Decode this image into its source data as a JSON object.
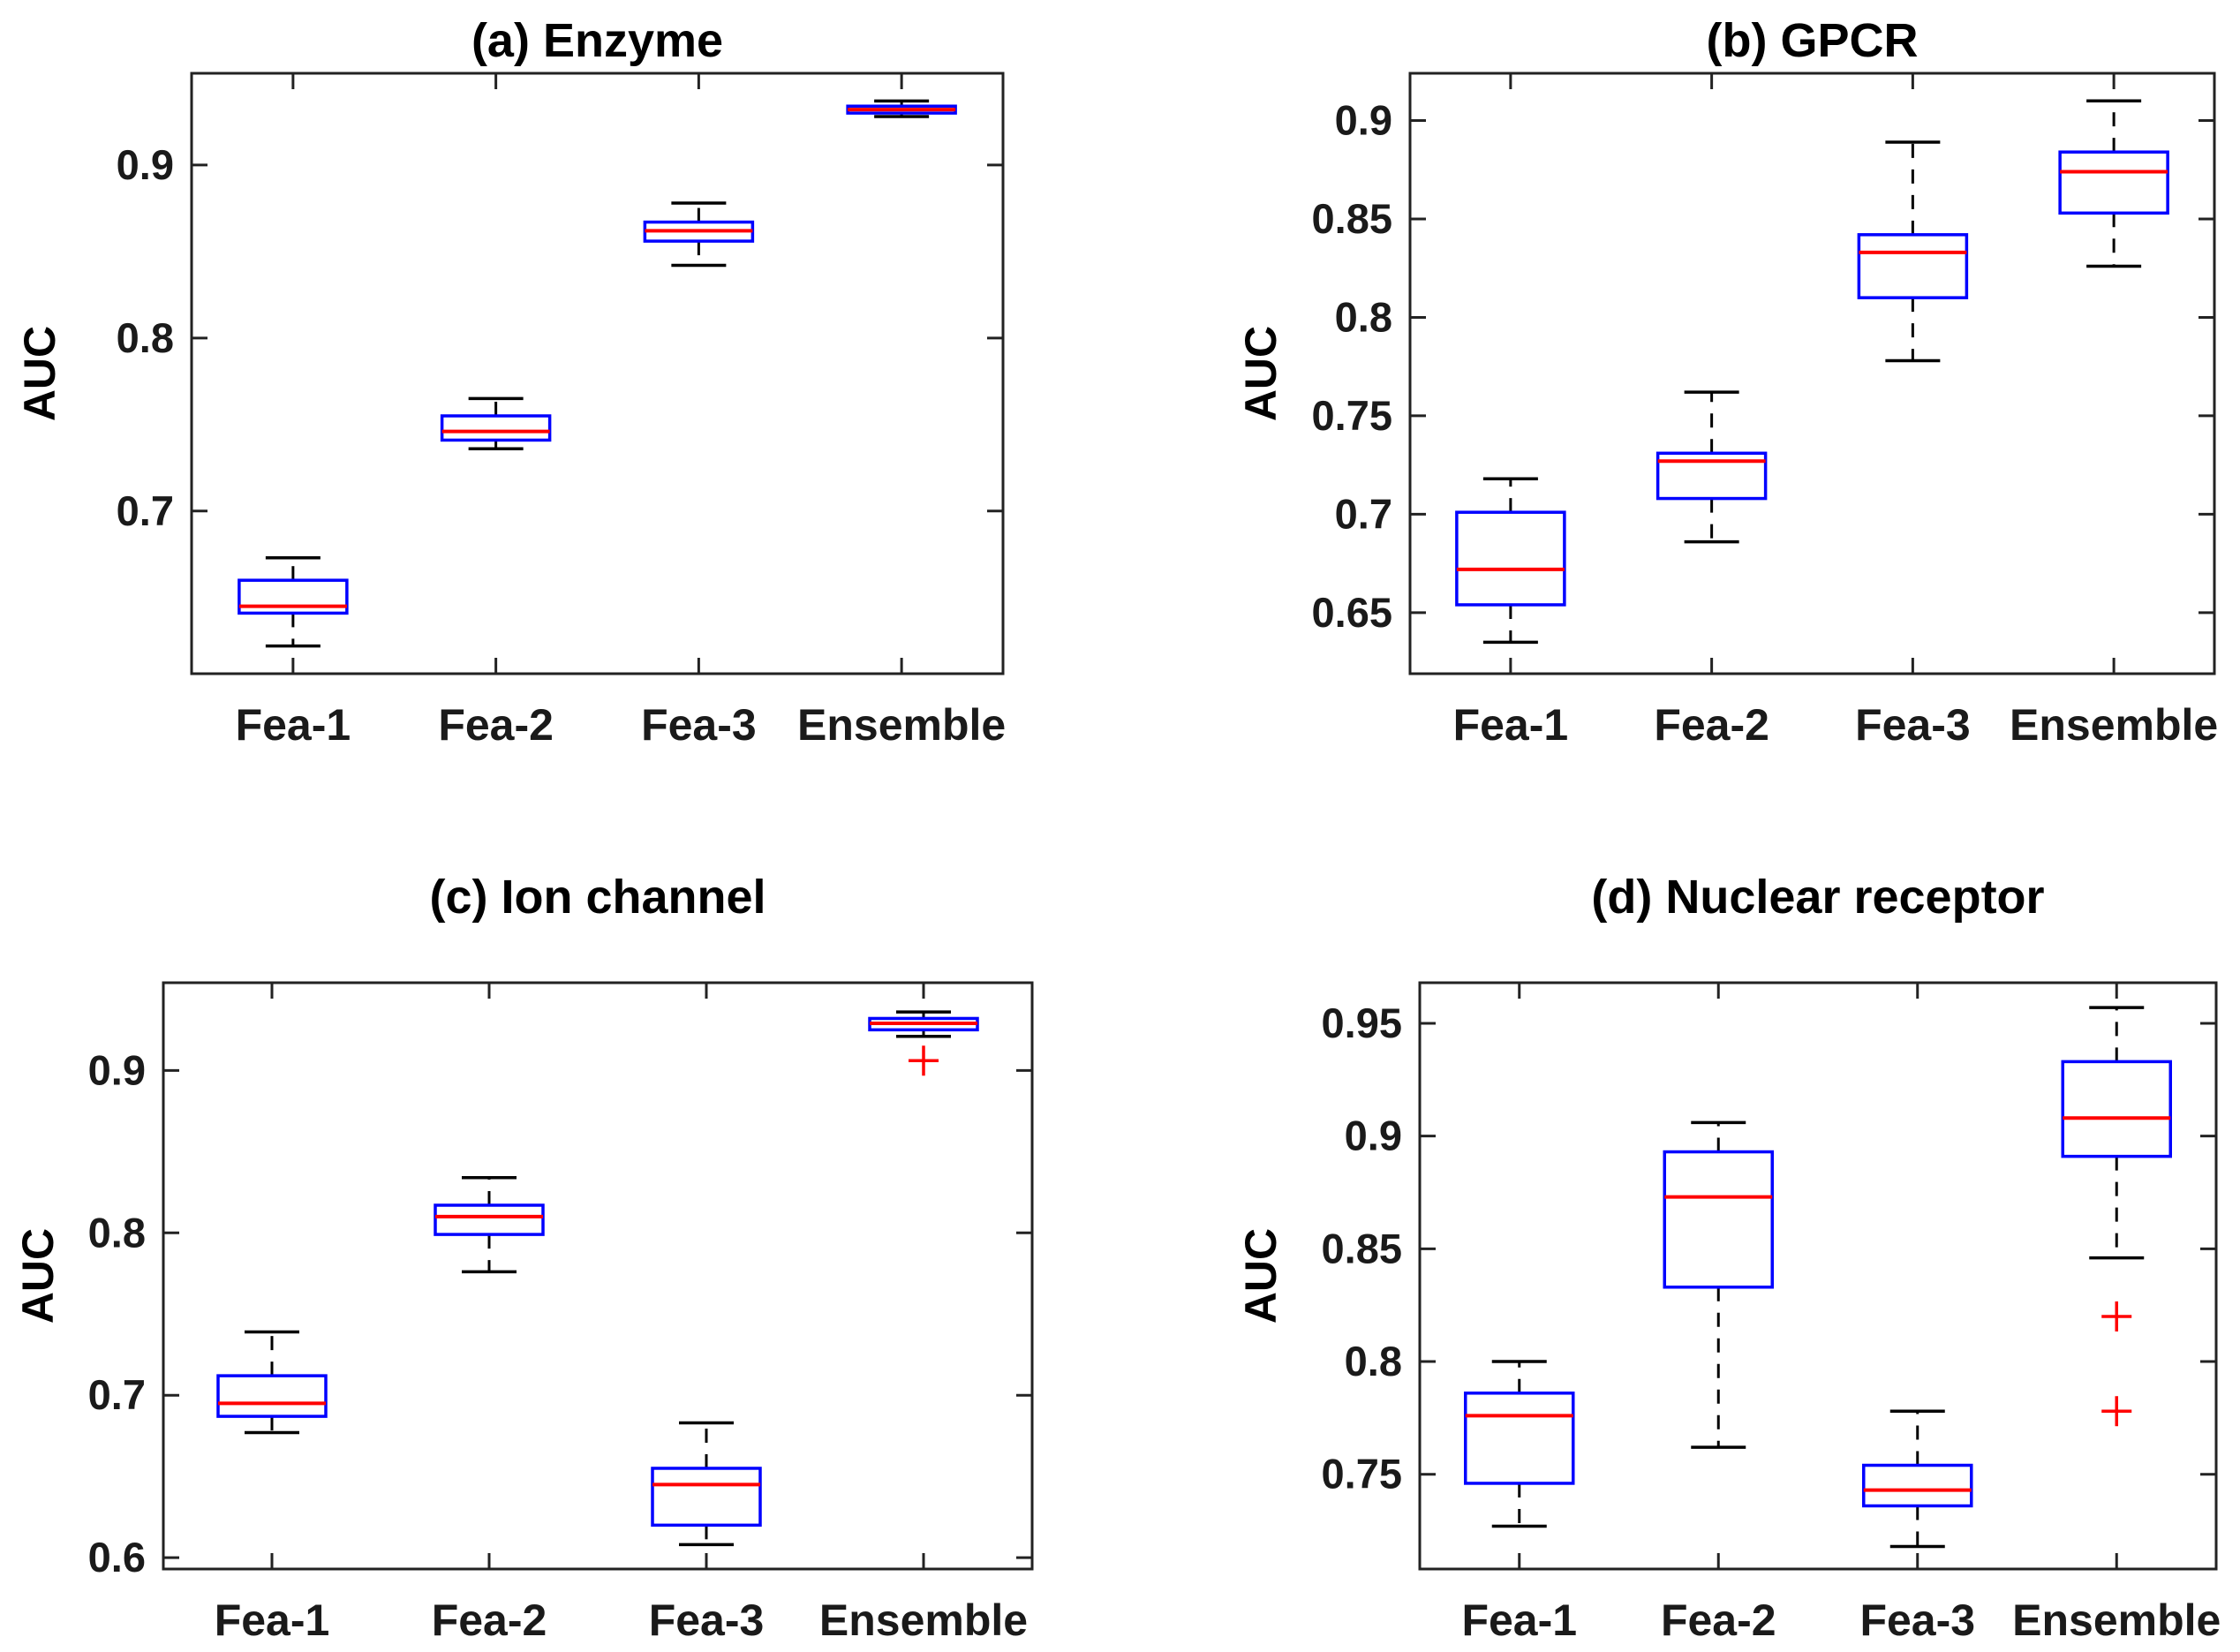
{
  "figure": {
    "background": "#ffffff",
    "styles": {
      "box_edge_color": "#0000ff",
      "median_color": "#ff0000",
      "whisker_color": "#000000",
      "cap_color": "#000000",
      "outlier_color": "#ff0000",
      "outlier_marker": "+",
      "axis_color": "#222222",
      "title_color": "#000000",
      "tick_label_color": "#1a1a1a"
    }
  },
  "chart_data": [
    {
      "id": "a",
      "type": "box",
      "title": "(a) Enzyme",
      "ylabel": "AUC",
      "xlabel": "",
      "grid": false,
      "legend": "none",
      "categories": [
        "Fea-1",
        "Fea-2",
        "Fea-3",
        "Ensemble"
      ],
      "ylim": [
        0.606,
        0.953
      ],
      "yticks": [
        {
          "value": 0.7,
          "label": "0.7"
        },
        {
          "value": 0.8,
          "label": "0.8"
        },
        {
          "value": 0.9,
          "label": "0.9"
        }
      ],
      "series": [
        {
          "category": "Fea-1",
          "whisker_low": 0.622,
          "q1": 0.641,
          "median": 0.645,
          "q3": 0.66,
          "whisker_high": 0.673,
          "outliers": []
        },
        {
          "category": "Fea-2",
          "whisker_low": 0.736,
          "q1": 0.741,
          "median": 0.746,
          "q3": 0.755,
          "whisker_high": 0.765,
          "outliers": []
        },
        {
          "category": "Fea-3",
          "whisker_low": 0.842,
          "q1": 0.856,
          "median": 0.862,
          "q3": 0.867,
          "whisker_high": 0.878,
          "outliers": []
        },
        {
          "category": "Ensemble",
          "whisker_low": 0.928,
          "q1": 0.93,
          "median": 0.932,
          "q3": 0.934,
          "whisker_high": 0.937,
          "outliers": []
        }
      ]
    },
    {
      "id": "b",
      "type": "box",
      "title": "(b) GPCR",
      "ylabel": "AUC",
      "xlabel": "",
      "grid": false,
      "legend": "none",
      "categories": [
        "Fea-1",
        "Fea-2",
        "Fea-3",
        "Ensemble"
      ],
      "ylim": [
        0.619,
        0.924
      ],
      "yticks": [
        {
          "value": 0.65,
          "label": "0.65"
        },
        {
          "value": 0.7,
          "label": "0.7"
        },
        {
          "value": 0.75,
          "label": "0.75"
        },
        {
          "value": 0.8,
          "label": "0.8"
        },
        {
          "value": 0.85,
          "label": "0.85"
        },
        {
          "value": 0.9,
          "label": "0.9"
        }
      ],
      "series": [
        {
          "category": "Fea-1",
          "whisker_low": 0.635,
          "q1": 0.654,
          "median": 0.672,
          "q3": 0.701,
          "whisker_high": 0.718,
          "outliers": []
        },
        {
          "category": "Fea-2",
          "whisker_low": 0.686,
          "q1": 0.708,
          "median": 0.727,
          "q3": 0.731,
          "whisker_high": 0.762,
          "outliers": []
        },
        {
          "category": "Fea-3",
          "whisker_low": 0.778,
          "q1": 0.81,
          "median": 0.833,
          "q3": 0.842,
          "whisker_high": 0.889,
          "outliers": []
        },
        {
          "category": "Ensemble",
          "whisker_low": 0.826,
          "q1": 0.853,
          "median": 0.874,
          "q3": 0.884,
          "whisker_high": 0.91,
          "outliers": []
        }
      ]
    },
    {
      "id": "c",
      "type": "box",
      "title": "(c) Ion channel",
      "ylabel": "AUC",
      "xlabel": "",
      "grid": false,
      "legend": "none",
      "categories": [
        "Fea-1",
        "Fea-2",
        "Fea-3",
        "Ensemble"
      ],
      "ylim": [
        0.593,
        0.954
      ],
      "yticks": [
        {
          "value": 0.6,
          "label": "0.6"
        },
        {
          "value": 0.7,
          "label": "0.7"
        },
        {
          "value": 0.8,
          "label": "0.8"
        },
        {
          "value": 0.9,
          "label": "0.9"
        }
      ],
      "series": [
        {
          "category": "Fea-1",
          "whisker_low": 0.677,
          "q1": 0.687,
          "median": 0.695,
          "q3": 0.712,
          "whisker_high": 0.739,
          "outliers": []
        },
        {
          "category": "Fea-2",
          "whisker_low": 0.776,
          "q1": 0.799,
          "median": 0.81,
          "q3": 0.817,
          "whisker_high": 0.834,
          "outliers": []
        },
        {
          "category": "Fea-3",
          "whisker_low": 0.608,
          "q1": 0.62,
          "median": 0.645,
          "q3": 0.655,
          "whisker_high": 0.683,
          "outliers": []
        },
        {
          "category": "Ensemble",
          "whisker_low": 0.921,
          "q1": 0.925,
          "median": 0.929,
          "q3": 0.932,
          "whisker_high": 0.936,
          "outliers": [
            0.906
          ]
        }
      ]
    },
    {
      "id": "d",
      "type": "box",
      "title": "(d) Nuclear receptor",
      "ylabel": "AUC",
      "xlabel": "",
      "grid": false,
      "legend": "none",
      "categories": [
        "Fea-1",
        "Fea-2",
        "Fea-3",
        "Ensemble"
      ],
      "ylim": [
        0.708,
        0.968
      ],
      "yticks": [
        {
          "value": 0.75,
          "label": "0.75"
        },
        {
          "value": 0.8,
          "label": "0.8"
        },
        {
          "value": 0.85,
          "label": "0.85"
        },
        {
          "value": 0.9,
          "label": "0.9"
        },
        {
          "value": 0.95,
          "label": "0.95"
        }
      ],
      "series": [
        {
          "category": "Fea-1",
          "whisker_low": 0.727,
          "q1": 0.746,
          "median": 0.776,
          "q3": 0.786,
          "whisker_high": 0.8,
          "outliers": []
        },
        {
          "category": "Fea-2",
          "whisker_low": 0.762,
          "q1": 0.833,
          "median": 0.873,
          "q3": 0.893,
          "whisker_high": 0.906,
          "outliers": []
        },
        {
          "category": "Fea-3",
          "whisker_low": 0.718,
          "q1": 0.736,
          "median": 0.743,
          "q3": 0.754,
          "whisker_high": 0.778,
          "outliers": []
        },
        {
          "category": "Ensemble",
          "whisker_low": 0.846,
          "q1": 0.891,
          "median": 0.908,
          "q3": 0.933,
          "whisker_high": 0.957,
          "outliers": [
            0.82,
            0.778
          ]
        }
      ]
    }
  ]
}
